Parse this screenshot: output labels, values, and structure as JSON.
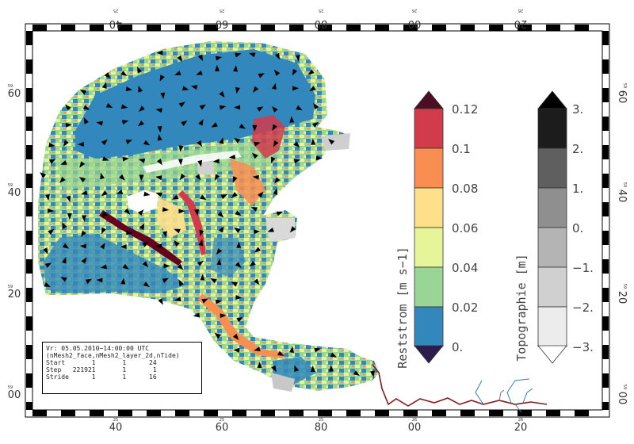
{
  "map": {
    "lon_major_labels_top": [
      "40",
      "60",
      "80",
      "00",
      "20"
    ],
    "lon_minor_labels_top": [
      "25",
      "25",
      "25",
      "26",
      "26"
    ],
    "lon_major_labels_bottom": [
      "40",
      "60",
      "80",
      "00",
      "20"
    ],
    "lon_minor_labels_bottom": [
      "25",
      "25",
      "25",
      "26",
      "26"
    ],
    "lat_major_labels": [
      "60",
      "40",
      "20",
      "00"
    ],
    "lat_minor_labels": [
      "59",
      "59",
      "59",
      "59"
    ]
  },
  "colorbar_current": {
    "title": "Reststrom [m s−1]",
    "labels": [
      "0.12",
      "0.1",
      "0.08",
      "0.06",
      "0.04",
      "0.02",
      "0."
    ],
    "colors": [
      "#d13b4b",
      "#f98e52",
      "#fee08b",
      "#e6f598",
      "#99d594",
      "#3288bd"
    ],
    "cap_top_color": "#4a0f22",
    "cap_bottom_color": "#2b1e4f"
  },
  "colorbar_topo": {
    "title": "Topographie [m]",
    "labels": [
      "3.",
      "2.",
      "1.",
      "0.",
      "−1.",
      "−2.",
      "−3."
    ],
    "colors": [
      "#1c1c1c",
      "#5f5f5f",
      "#8f8f8f",
      "#b4b4b4",
      "#d0d0d0",
      "#ececec"
    ],
    "cap_top_color": "#000000",
    "cap_bottom_color": "#ffffff"
  },
  "info": {
    "line1": "Vr: 05.05.2010−14:00:00 UTC",
    "line2": "(nMesh2_face,nMesh2_layer_2d,nTide)",
    "line3": "Start       1       1      24",
    "line4": "Step   221921       1       1",
    "line5": "Stride      1       1      16"
  }
}
